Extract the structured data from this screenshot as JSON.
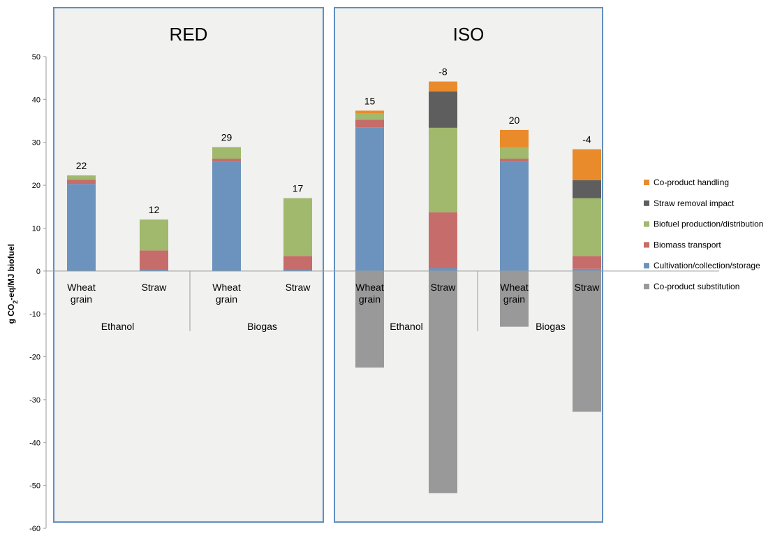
{
  "chart_data": {
    "type": "bar",
    "stacked": true,
    "ylabel": "g CO2-eq/MJ biofuel",
    "ylabel_parts": [
      "g CO",
      "2",
      "-eq/MJ biofuel"
    ],
    "ylim": [
      -60,
      50
    ],
    "yticks": [
      50,
      40,
      30,
      20,
      10,
      0,
      -10,
      -20,
      -30,
      -40,
      -50,
      -60
    ],
    "grid": false,
    "legend_position": "right",
    "panels": [
      {
        "title": "RED",
        "groups": [
          {
            "label": "Ethanol",
            "categories": [
              "Wheat grain",
              "Straw"
            ]
          },
          {
            "label": "Biogas",
            "categories": [
              "Wheat grain",
              "Straw"
            ]
          }
        ],
        "totals": [
          "22",
          "12",
          "29",
          "17"
        ]
      },
      {
        "title": "ISO",
        "groups": [
          {
            "label": "Ethanol",
            "categories": [
              "Wheat grain",
              "Straw"
            ]
          },
          {
            "label": "Biogas",
            "categories": [
              "Wheat grain",
              "Straw"
            ]
          }
        ],
        "totals": [
          "15",
          "-8",
          "20",
          "-4"
        ]
      }
    ],
    "series": [
      {
        "name": "Co-product substitution",
        "color": "#999999",
        "values": [
          [
            0,
            0,
            0,
            0
          ],
          [
            -22.5,
            -51.8,
            -13,
            -32.8
          ]
        ]
      },
      {
        "name": "Cultivation/collection/storage",
        "color": "#6b93bd",
        "values": [
          [
            20.3,
            0.3,
            25.5,
            0.3
          ],
          [
            33.5,
            0.7,
            25.5,
            0.5
          ]
        ]
      },
      {
        "name": "Biomass transport",
        "color": "#c66c6a",
        "values": [
          [
            1,
            4.5,
            0.7,
            3.2
          ],
          [
            1.8,
            13,
            0.7,
            3
          ]
        ]
      },
      {
        "name": "Biofuel production/distribution",
        "color": "#a0b96d",
        "values": [
          [
            1,
            7.2,
            2.7,
            13.5
          ],
          [
            1.5,
            19.7,
            2.7,
            13.5
          ]
        ]
      },
      {
        "name": "Straw removal impact",
        "color": "#5e5e5e",
        "values": [
          [
            0,
            0,
            0,
            0
          ],
          [
            0,
            8.5,
            0,
            4.2
          ]
        ]
      },
      {
        "name": "Co-product handling",
        "color": "#e98b2b",
        "values": [
          [
            0,
            0,
            0,
            0
          ],
          [
            0.6,
            2.3,
            4,
            7.2
          ]
        ]
      }
    ],
    "legend_order": [
      "Co-product handling",
      "Straw removal impact",
      "Biofuel production/distribution",
      "Biomass transport",
      "Cultivation/collection/storage",
      "Co-product substitution"
    ]
  }
}
